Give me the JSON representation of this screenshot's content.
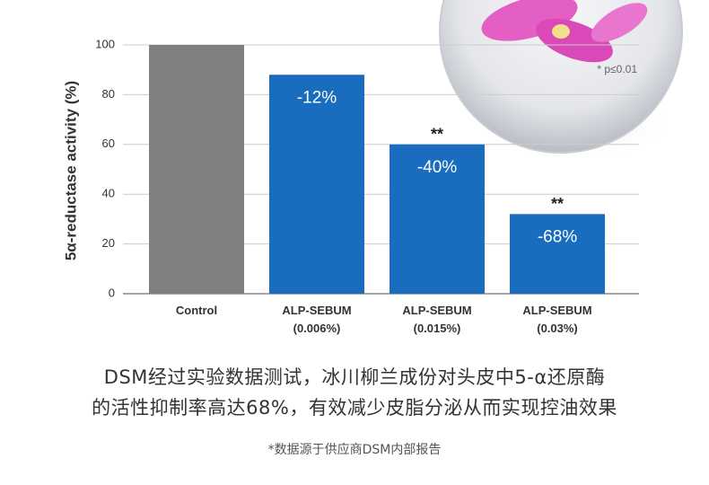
{
  "chart_data": {
    "type": "bar",
    "y_label": "5α-reductase activity (%)",
    "categories": [
      "Control",
      "ALP-SEBUM\n(0.006%)",
      "ALP-SEBUM\n(0.015%)",
      "ALP-SEBUM\n(0.03%)"
    ],
    "values": [
      100,
      88,
      60,
      32
    ],
    "colors": [
      "#808080",
      "#1a6cbf",
      "#1a6cbf",
      "#1a6cbf"
    ],
    "change_labels": [
      null,
      "-12%",
      "-40%",
      "-68%"
    ],
    "significance_labels": [
      null,
      null,
      "**",
      "**"
    ],
    "footnote": "* p≤0.01",
    "ylim": [
      0,
      100
    ],
    "yticks": [
      0,
      20,
      40,
      60,
      80,
      100
    ],
    "grid": true
  },
  "caption": [
    "DSM经过实验数据测试，冰川柳兰成份对头皮中5-α还原酶",
    "的活性抑制率高达68%，有效减少皮脂分泌从而实现控油效果"
  ],
  "source": "*数据源于供应商DSM内部报告"
}
